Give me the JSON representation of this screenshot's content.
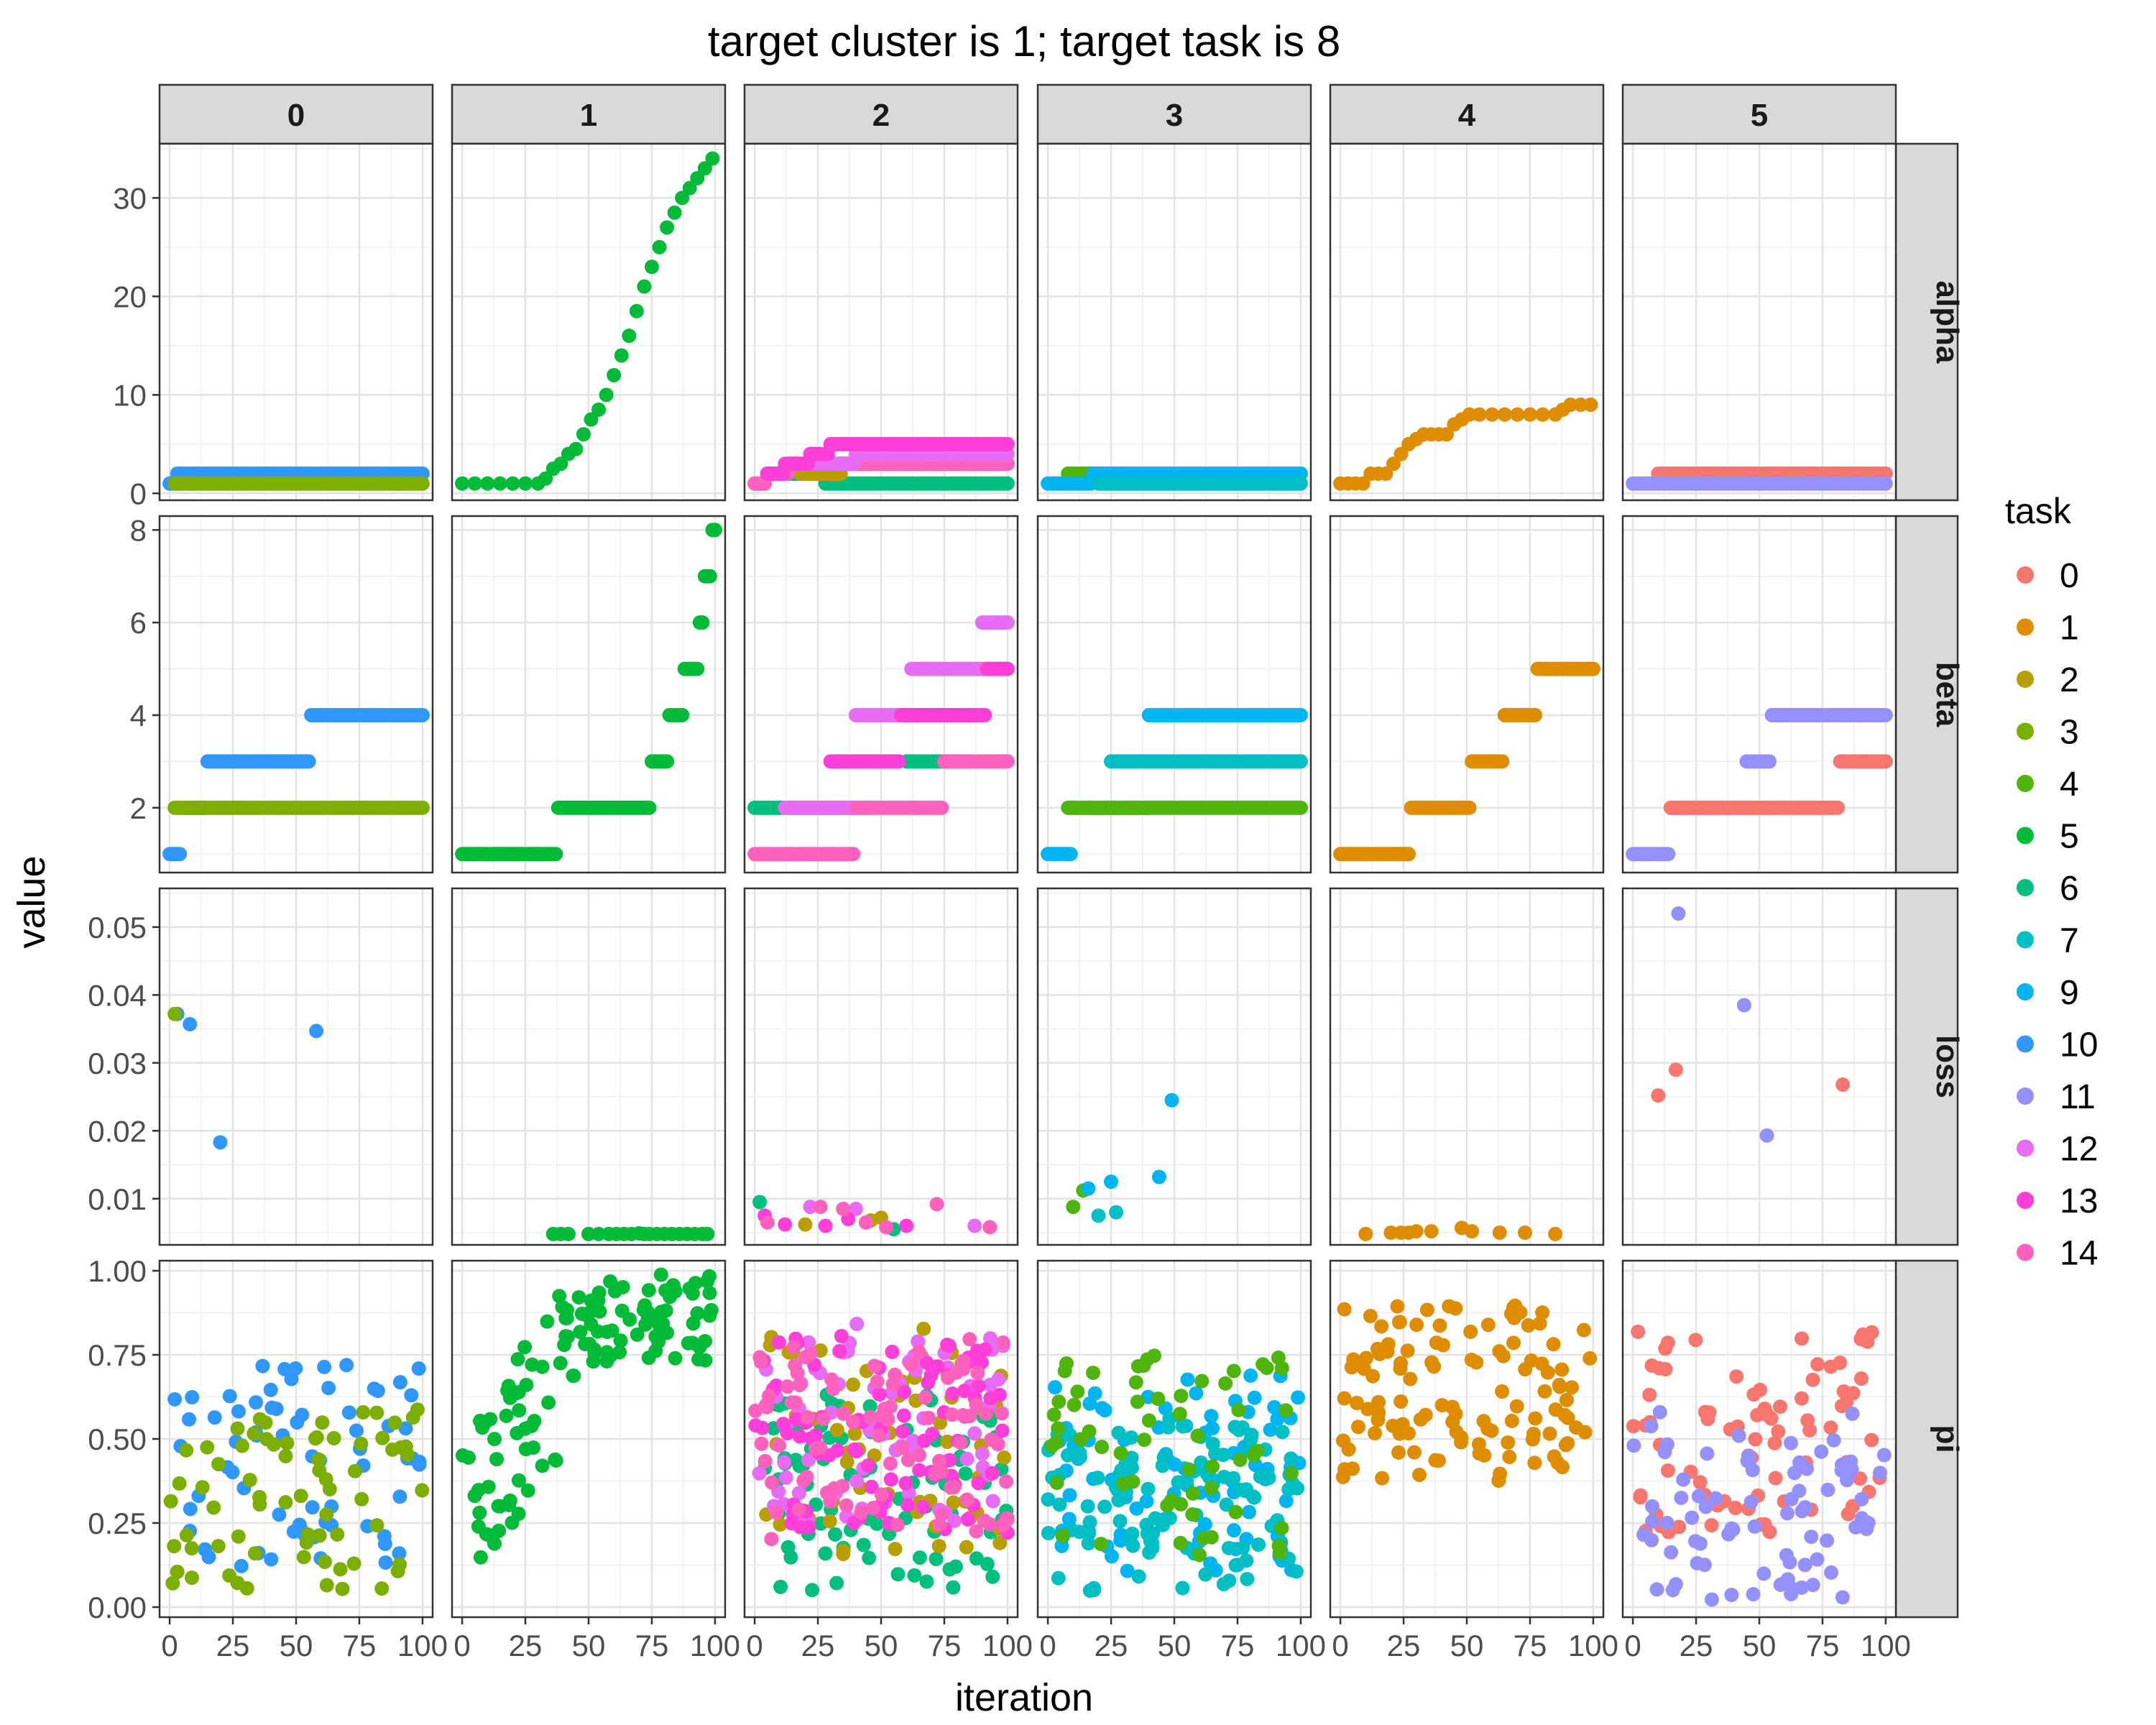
{
  "chart_data": {
    "type": "scatter",
    "title": "target cluster is 1; target task is 8",
    "xlabel": "iteration",
    "ylabel": "value",
    "facet_columns": [
      "0",
      "1",
      "2",
      "3",
      "4",
      "5"
    ],
    "facet_rows": [
      "alpha",
      "beta",
      "loss",
      "pi"
    ],
    "x_ticks": [
      0,
      25,
      50,
      75,
      100
    ],
    "x_range": [
      -4,
      104
    ],
    "y_ranges": {
      "alpha": [
        -0.7,
        35.5
      ],
      "beta": [
        0.6,
        8.3
      ],
      "loss": [
        0.0032,
        0.0557
      ],
      "pi": [
        -0.03,
        1.03
      ]
    },
    "y_ticks": {
      "alpha": {
        "values": [
          0,
          10,
          20,
          30
        ],
        "labels": [
          "0",
          "10",
          "20",
          "30"
        ]
      },
      "beta": {
        "values": [
          2,
          4,
          6,
          8
        ],
        "labels": [
          "2",
          "4",
          "6",
          "8"
        ]
      },
      "loss": {
        "values": [
          0.01,
          0.02,
          0.03,
          0.04,
          0.05
        ],
        "labels": [
          "0.01",
          "0.02",
          "0.03",
          "0.04",
          "0.05"
        ]
      },
      "pi": {
        "values": [
          0,
          0.25,
          0.5,
          0.75,
          1
        ],
        "labels": [
          "0.00",
          "0.25",
          "0.50",
          "0.75",
          "1.00"
        ]
      }
    },
    "grid": true,
    "legend": {
      "title": "task",
      "position": "right",
      "entries": [
        {
          "label": "0",
          "color": "#F8766D"
        },
        {
          "label": "1",
          "color": "#DE8C00"
        },
        {
          "label": "2",
          "color": "#B79F00"
        },
        {
          "label": "3",
          "color": "#7CAE00"
        },
        {
          "label": "4",
          "color": "#4FB40C"
        },
        {
          "label": "5",
          "color": "#00BA38"
        },
        {
          "label": "6",
          "color": "#00BF7D"
        },
        {
          "label": "7",
          "color": "#00BFC4"
        },
        {
          "label": "9",
          "color": "#00B4F0"
        },
        {
          "label": "10",
          "color": "#2F97FF"
        },
        {
          "label": "11",
          "color": "#9590FF"
        },
        {
          "label": "12",
          "color": "#E76BF3"
        },
        {
          "label": "13",
          "color": "#FF3FD8"
        },
        {
          "label": "14",
          "color": "#FF62BC"
        }
      ]
    },
    "series": [
      {
        "cluster": "0",
        "task": "10",
        "metric": "alpha",
        "steps": [
          [
            0,
            1
          ],
          [
            3,
            2
          ]
        ],
        "x_end": 100
      },
      {
        "cluster": "0",
        "task": "3",
        "metric": "alpha",
        "steps": [
          [
            2,
            1
          ]
        ],
        "x_end": 100
      },
      {
        "cluster": "1",
        "task": "5",
        "metric": "alpha",
        "points": [
          [
            0,
            1
          ],
          [
            5,
            1
          ],
          [
            10,
            1
          ],
          [
            15,
            1
          ],
          [
            20,
            1
          ],
          [
            25,
            1
          ],
          [
            30,
            1
          ],
          [
            33,
            1.5
          ],
          [
            36,
            2.5
          ],
          [
            39,
            3
          ],
          [
            42,
            4
          ],
          [
            45,
            4.5
          ],
          [
            48,
            6
          ],
          [
            51,
            7.5
          ],
          [
            54,
            8.5
          ],
          [
            57,
            10
          ],
          [
            60,
            12
          ],
          [
            63,
            14
          ],
          [
            66,
            16
          ],
          [
            69,
            18.5
          ],
          [
            72,
            21
          ],
          [
            75,
            23
          ],
          [
            78,
            25
          ],
          [
            81,
            27
          ],
          [
            84,
            28.5
          ],
          [
            87,
            30
          ],
          [
            90,
            31
          ],
          [
            93,
            32
          ],
          [
            96,
            33
          ],
          [
            99,
            34
          ]
        ]
      },
      {
        "cluster": "2",
        "task": "6",
        "metric": "alpha",
        "steps": [
          [
            0,
            1
          ],
          [
            5,
            2
          ]
        ],
        "x_end": 28
      },
      {
        "cluster": "2",
        "task": "6",
        "metric": "alpha",
        "steps": [
          [
            28,
            1
          ]
        ],
        "x_end": 100
      },
      {
        "cluster": "2",
        "task": "2",
        "metric": "alpha",
        "steps": [
          [
            18,
            2
          ],
          [
            35,
            3
          ]
        ],
        "x_end": 100
      },
      {
        "cluster": "2",
        "task": "14",
        "metric": "alpha",
        "steps": [
          [
            0,
            1
          ],
          [
            5,
            2
          ],
          [
            14,
            3
          ]
        ],
        "x_end": 100
      },
      {
        "cluster": "2",
        "task": "12",
        "metric": "alpha",
        "steps": [
          [
            25,
            3
          ],
          [
            40,
            4
          ]
        ],
        "x_end": 100
      },
      {
        "cluster": "2",
        "task": "13",
        "metric": "alpha",
        "steps": [
          [
            5,
            2
          ],
          [
            12,
            3
          ],
          [
            22,
            4
          ],
          [
            30,
            5
          ]
        ],
        "x_end": 100
      },
      {
        "cluster": "3",
        "task": "4",
        "metric": "alpha",
        "steps": [
          [
            8,
            2
          ]
        ],
        "x_end": 30
      },
      {
        "cluster": "3",
        "task": "9",
        "metric": "alpha",
        "steps": [
          [
            0,
            1
          ],
          [
            18,
            2
          ]
        ],
        "x_end": 100
      },
      {
        "cluster": "3",
        "task": "7",
        "metric": "alpha",
        "steps": [
          [
            20,
            1
          ]
        ],
        "x_end": 100
      },
      {
        "cluster": "4",
        "task": "1",
        "metric": "alpha",
        "points": [
          [
            0,
            1
          ],
          [
            3,
            1
          ],
          [
            6,
            1
          ],
          [
            9,
            1
          ],
          [
            12,
            2
          ],
          [
            15,
            2
          ],
          [
            18,
            2
          ],
          [
            21,
            3
          ],
          [
            24,
            4
          ],
          [
            27,
            5
          ],
          [
            30,
            5.5
          ],
          [
            33,
            6
          ],
          [
            36,
            6
          ],
          [
            39,
            6
          ],
          [
            42,
            6
          ],
          [
            45,
            7
          ],
          [
            48,
            7.5
          ],
          [
            51,
            8
          ],
          [
            55,
            8
          ],
          [
            60,
            8
          ],
          [
            65,
            8
          ],
          [
            70,
            8
          ],
          [
            75,
            8
          ],
          [
            80,
            8
          ],
          [
            85,
            8
          ],
          [
            88,
            8.5
          ],
          [
            91,
            9
          ],
          [
            95,
            9
          ],
          [
            99,
            9
          ]
        ]
      },
      {
        "cluster": "5",
        "task": "0",
        "metric": "alpha",
        "steps": [
          [
            10,
            2
          ]
        ],
        "x_end": 100
      },
      {
        "cluster": "5",
        "task": "11",
        "metric": "alpha",
        "steps": [
          [
            0,
            1
          ]
        ],
        "x_end": 100
      },
      {
        "cluster": "0",
        "task": "10",
        "metric": "beta",
        "steps": [
          [
            0,
            1
          ],
          [
            5,
            2
          ],
          [
            15,
            3
          ],
          [
            56,
            4
          ]
        ],
        "x_end": 100
      },
      {
        "cluster": "0",
        "task": "3",
        "metric": "beta",
        "steps": [
          [
            2,
            2
          ]
        ],
        "x_end": 100
      },
      {
        "cluster": "1",
        "task": "5",
        "metric": "beta",
        "steps": [
          [
            0,
            1
          ],
          [
            38,
            2
          ],
          [
            75,
            3
          ],
          [
            82,
            4
          ],
          [
            88,
            5
          ],
          [
            94,
            6
          ],
          [
            96,
            7
          ],
          [
            99,
            8
          ]
        ],
        "x_end": 100
      },
      {
        "cluster": "2",
        "task": "6",
        "metric": "beta",
        "steps": [
          [
            0,
            2
          ]
        ],
        "x_end": 45
      },
      {
        "cluster": "2",
        "task": "6",
        "metric": "beta",
        "steps": [
          [
            60,
            3
          ]
        ],
        "x_end": 85
      },
      {
        "cluster": "2",
        "task": "2",
        "metric": "beta",
        "steps": [
          [
            62,
            4
          ],
          [
            88,
            5
          ]
        ],
        "x_end": 92
      },
      {
        "cluster": "2",
        "task": "12",
        "metric": "beta",
        "steps": [
          [
            12,
            2
          ],
          [
            40,
            4
          ],
          [
            62,
            5
          ],
          [
            90,
            6
          ]
        ],
        "x_end": 100
      },
      {
        "cluster": "2",
        "task": "14",
        "metric": "beta",
        "steps": [
          [
            0,
            1
          ],
          [
            40,
            2
          ],
          [
            75,
            3
          ]
        ],
        "x_end": 100
      },
      {
        "cluster": "2",
        "task": "13",
        "metric": "beta",
        "steps": [
          [
            30,
            3
          ],
          [
            58,
            4
          ],
          [
            92,
            5
          ]
        ],
        "x_end": 100
      },
      {
        "cluster": "3",
        "task": "9",
        "metric": "beta",
        "steps": [
          [
            0,
            1
          ],
          [
            10,
            2
          ],
          [
            40,
            4
          ]
        ],
        "x_end": 100
      },
      {
        "cluster": "3",
        "task": "7",
        "metric": "beta",
        "steps": [
          [
            25,
            3
          ]
        ],
        "x_end": 100
      },
      {
        "cluster": "3",
        "task": "4",
        "metric": "beta",
        "steps": [
          [
            8,
            2
          ]
        ],
        "x_end": 100
      },
      {
        "cluster": "4",
        "task": "1",
        "metric": "beta",
        "steps": [
          [
            0,
            1
          ],
          [
            28,
            2
          ],
          [
            52,
            3
          ],
          [
            65,
            4
          ],
          [
            78,
            5
          ]
        ],
        "x_end": 100
      },
      {
        "cluster": "5",
        "task": "11",
        "metric": "beta",
        "steps": [
          [
            0,
            1
          ],
          [
            15,
            2
          ],
          [
            45,
            3
          ],
          [
            55,
            4
          ]
        ],
        "x_end": 100
      },
      {
        "cluster": "5",
        "task": "0",
        "metric": "beta",
        "steps": [
          [
            15,
            2
          ],
          [
            82,
            3
          ]
        ],
        "x_end": 100
      },
      {
        "cluster": "0",
        "task": "10",
        "metric": "loss",
        "points": [
          [
            3,
            0.0372
          ],
          [
            8,
            0.0357
          ],
          [
            20,
            0.0183
          ],
          [
            58,
            0.0347
          ]
        ]
      },
      {
        "cluster": "0",
        "task": "3",
        "metric": "loss",
        "points": [
          [
            2,
            0.0372
          ]
        ]
      },
      {
        "cluster": "1",
        "task": "5",
        "metric": "loss",
        "points": [
          [
            36,
            0.0048
          ],
          [
            39,
            0.0048
          ],
          [
            42,
            0.0048
          ],
          [
            50,
            0.0048
          ],
          [
            54,
            0.0048
          ],
          [
            58,
            0.0048
          ],
          [
            61,
            0.0048
          ],
          [
            64,
            0.0048
          ],
          [
            67,
            0.0048
          ],
          [
            70,
            0.0049
          ],
          [
            72,
            0.0048
          ],
          [
            74,
            0.0048
          ],
          [
            77,
            0.0048
          ],
          [
            80,
            0.0048
          ],
          [
            83,
            0.0048
          ],
          [
            86,
            0.0048
          ],
          [
            89,
            0.0048
          ],
          [
            92,
            0.0048
          ],
          [
            95,
            0.0048
          ],
          [
            97,
            0.0048
          ]
        ]
      },
      {
        "cluster": "2",
        "task": "6",
        "metric": "loss",
        "points": [
          [
            2,
            0.0095
          ],
          [
            55,
            0.0055
          ]
        ]
      },
      {
        "cluster": "2",
        "task": "2",
        "metric": "loss",
        "points": [
          [
            20,
            0.0062
          ],
          [
            46,
            0.0068
          ],
          [
            50,
            0.0072
          ]
        ]
      },
      {
        "cluster": "2",
        "task": "12",
        "metric": "loss",
        "points": [
          [
            22,
            0.0088
          ],
          [
            40,
            0.0085
          ],
          [
            87,
            0.006
          ]
        ]
      },
      {
        "cluster": "2",
        "task": "13",
        "metric": "loss",
        "points": [
          [
            4,
            0.0075
          ],
          [
            12,
            0.0062
          ],
          [
            28,
            0.006
          ],
          [
            37,
            0.007
          ],
          [
            60,
            0.006
          ]
        ]
      },
      {
        "cluster": "2",
        "task": "14",
        "metric": "loss",
        "points": [
          [
            5,
            0.0065
          ],
          [
            26,
            0.0088
          ],
          [
            35,
            0.0085
          ],
          [
            44,
            0.0065
          ],
          [
            52,
            0.0058
          ],
          [
            72,
            0.0092
          ],
          [
            93,
            0.0058
          ]
        ]
      },
      {
        "cluster": "3",
        "task": "4",
        "metric": "loss",
        "points": [
          [
            10,
            0.0088
          ],
          [
            14,
            0.0112
          ]
        ]
      },
      {
        "cluster": "3",
        "task": "7",
        "metric": "loss",
        "points": [
          [
            20,
            0.0075
          ],
          [
            27,
            0.008
          ]
        ]
      },
      {
        "cluster": "3",
        "task": "9",
        "metric": "loss",
        "points": [
          [
            16,
            0.0115
          ],
          [
            25,
            0.0125
          ],
          [
            44,
            0.0132
          ],
          [
            49,
            0.0245
          ]
        ]
      },
      {
        "cluster": "4",
        "task": "1",
        "metric": "loss",
        "points": [
          [
            10,
            0.0048
          ],
          [
            20,
            0.005
          ],
          [
            24,
            0.005
          ],
          [
            27,
            0.005
          ],
          [
            30,
            0.0052
          ],
          [
            36,
            0.0052
          ],
          [
            48,
            0.0057
          ],
          [
            52,
            0.0052
          ],
          [
            63,
            0.005
          ],
          [
            73,
            0.005
          ],
          [
            85,
            0.0048
          ]
        ]
      },
      {
        "cluster": "5",
        "task": "0",
        "metric": "loss",
        "points": [
          [
            10,
            0.0252
          ],
          [
            17,
            0.029
          ],
          [
            83,
            0.0268
          ]
        ]
      },
      {
        "cluster": "5",
        "task": "11",
        "metric": "loss",
        "points": [
          [
            18,
            0.052
          ],
          [
            44,
            0.0385
          ],
          [
            53,
            0.0193
          ]
        ]
      }
    ]
  }
}
